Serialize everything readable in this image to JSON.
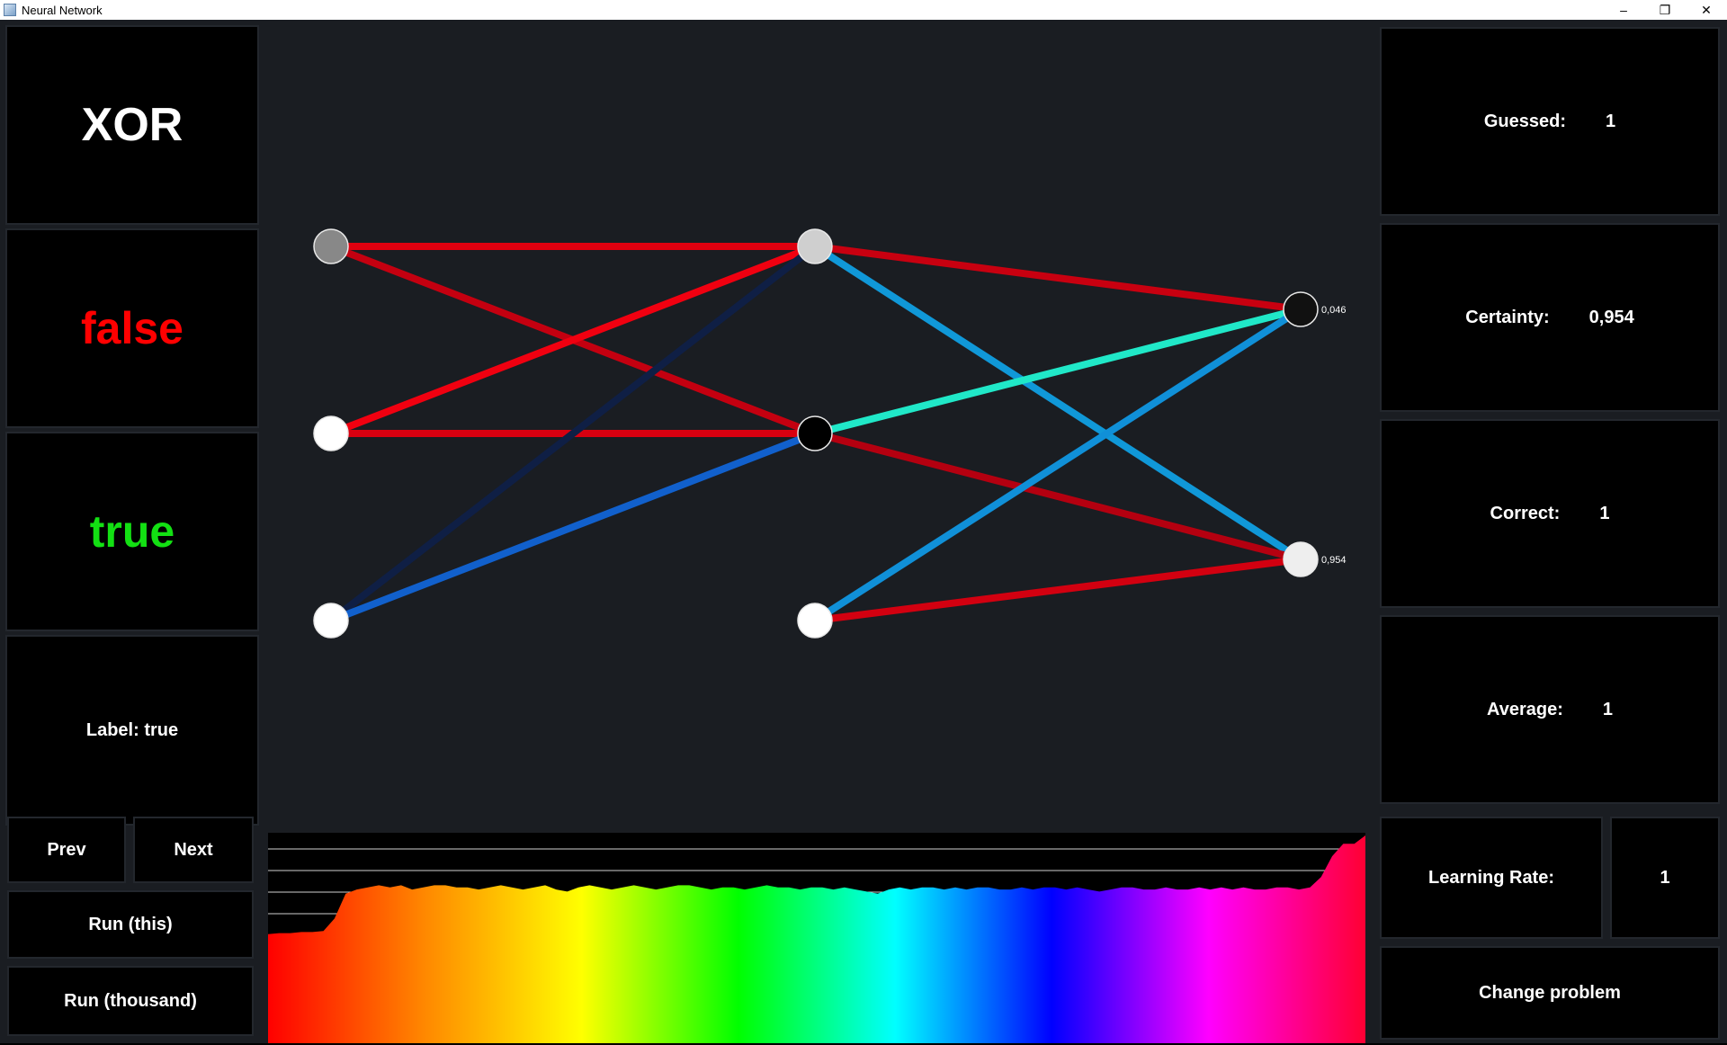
{
  "window": {
    "title": "Neural Network",
    "minimize": "–",
    "restore": "❐",
    "close": "✕"
  },
  "left": {
    "problem": "XOR",
    "false_label": "false",
    "true_label": "true",
    "label_text": "Label: true"
  },
  "controls": {
    "prev": "Prev",
    "next": "Next",
    "run_this": "Run (this)",
    "run_thousand": "Run (thousand)"
  },
  "stats": {
    "guessed_label": "Guessed:",
    "guessed_value": "1",
    "certainty_label": "Certainty:",
    "certainty_value": "0,954",
    "correct_label": "Correct:",
    "correct_value": "1",
    "average_label": "Average:",
    "average_value": "1"
  },
  "learning_rate": {
    "label": "Learning Rate:",
    "value": "1"
  },
  "change_problem": "Change problem",
  "network": {
    "layers": [
      {
        "neurons": [
          {
            "fill": "#888888"
          },
          {
            "fill": "#ffffff"
          },
          {
            "fill": "#ffffff"
          }
        ]
      },
      {
        "neurons": [
          {
            "fill": "#cfcfcf"
          },
          {
            "fill": "#000000"
          },
          {
            "fill": "#ffffff"
          }
        ]
      },
      {
        "neurons": [
          {
            "fill": "#111111",
            "value": "0,046"
          },
          {
            "fill": "#eeeeee",
            "value": "0,954"
          }
        ]
      }
    ],
    "connections": [
      {
        "from": [
          0,
          0
        ],
        "to": [
          1,
          0
        ],
        "color": "#e0000f"
      },
      {
        "from": [
          0,
          0
        ],
        "to": [
          1,
          1
        ],
        "color": "#c40010"
      },
      {
        "from": [
          0,
          1
        ],
        "to": [
          1,
          0
        ],
        "color": "#f00010"
      },
      {
        "from": [
          0,
          1
        ],
        "to": [
          1,
          1
        ],
        "color": "#d80010"
      },
      {
        "from": [
          0,
          2
        ],
        "to": [
          1,
          0
        ],
        "color": "#0f1f45"
      },
      {
        "from": [
          0,
          2
        ],
        "to": [
          1,
          1
        ],
        "color": "#1160cc"
      },
      {
        "from": [
          1,
          0
        ],
        "to": [
          2,
          0
        ],
        "color": "#c80010"
      },
      {
        "from": [
          1,
          0
        ],
        "to": [
          2,
          1
        ],
        "color": "#1098d8"
      },
      {
        "from": [
          1,
          1
        ],
        "to": [
          2,
          0
        ],
        "color": "#20e8c8"
      },
      {
        "from": [
          1,
          1
        ],
        "to": [
          2,
          1
        ],
        "color": "#b40010"
      },
      {
        "from": [
          1,
          2
        ],
        "to": [
          2,
          0
        ],
        "color": "#1090d8"
      },
      {
        "from": [
          1,
          2
        ],
        "to": [
          2,
          1
        ],
        "color": "#d20010"
      }
    ]
  },
  "history": {
    "gridlines": 4,
    "levels": [
      0.525,
      0.53,
      0.53,
      0.535,
      0.535,
      0.54,
      0.6,
      0.72,
      0.74,
      0.75,
      0.76,
      0.75,
      0.76,
      0.74,
      0.75,
      0.76,
      0.76,
      0.75,
      0.75,
      0.74,
      0.75,
      0.76,
      0.75,
      0.74,
      0.75,
      0.76,
      0.74,
      0.73,
      0.75,
      0.76,
      0.75,
      0.74,
      0.75,
      0.76,
      0.75,
      0.74,
      0.75,
      0.76,
      0.76,
      0.75,
      0.74,
      0.75,
      0.75,
      0.74,
      0.75,
      0.76,
      0.75,
      0.75,
      0.74,
      0.75,
      0.75,
      0.74,
      0.75,
      0.74,
      0.73,
      0.72,
      0.74,
      0.75,
      0.74,
      0.75,
      0.75,
      0.74,
      0.75,
      0.74,
      0.75,
      0.75,
      0.74,
      0.74,
      0.75,
      0.74,
      0.75,
      0.75,
      0.74,
      0.75,
      0.74,
      0.73,
      0.74,
      0.75,
      0.75,
      0.74,
      0.74,
      0.75,
      0.74,
      0.74,
      0.75,
      0.74,
      0.75,
      0.74,
      0.75,
      0.74,
      0.74,
      0.75,
      0.75,
      0.74,
      0.75,
      0.8,
      0.9,
      0.96,
      0.96,
      1.0
    ]
  }
}
